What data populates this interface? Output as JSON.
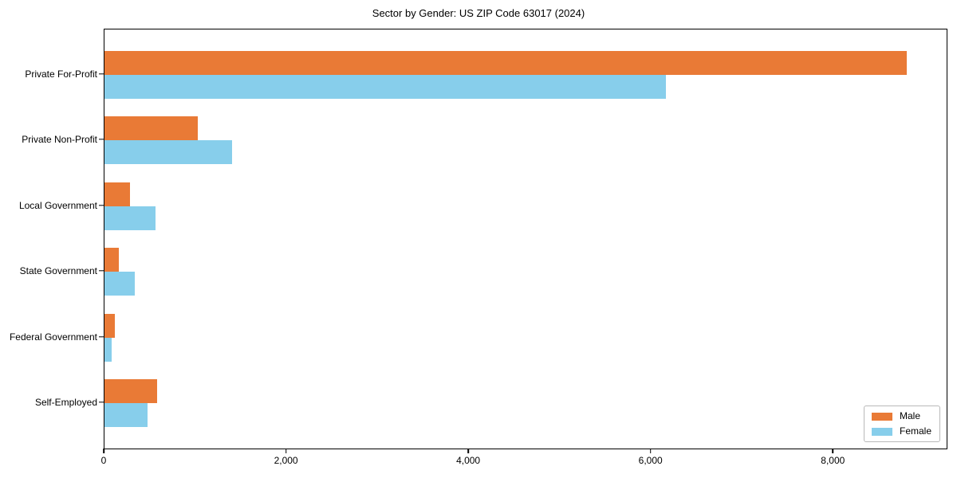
{
  "chart_data": {
    "type": "bar",
    "orientation": "horizontal",
    "title": "Sector by Gender: US ZIP Code 63017 (2024)",
    "categories": [
      "Private For-Profit",
      "Private Non-Profit",
      "Local Government",
      "State Government",
      "Federal Government",
      "Self-Employed"
    ],
    "series": [
      {
        "name": "Male",
        "color": "#E97A36",
        "values": [
          8800,
          1020,
          280,
          155,
          110,
          575
        ]
      },
      {
        "name": "Female",
        "color": "#87CEEB",
        "values": [
          6160,
          1400,
          560,
          330,
          80,
          475
        ]
      }
    ],
    "xlim": [
      0,
      9240
    ],
    "x_ticks": [
      {
        "value": 0,
        "label": "0"
      },
      {
        "value": 2000,
        "label": "2,000"
      },
      {
        "value": 4000,
        "label": "4,000"
      },
      {
        "value": 6000,
        "label": "6,000"
      },
      {
        "value": 8000,
        "label": "8,000"
      }
    ],
    "xlabel": "",
    "ylabel": "",
    "grid": false,
    "legend": {
      "position": "lower right"
    },
    "colors": {
      "axis": "#000000",
      "background": "#ffffff"
    }
  }
}
